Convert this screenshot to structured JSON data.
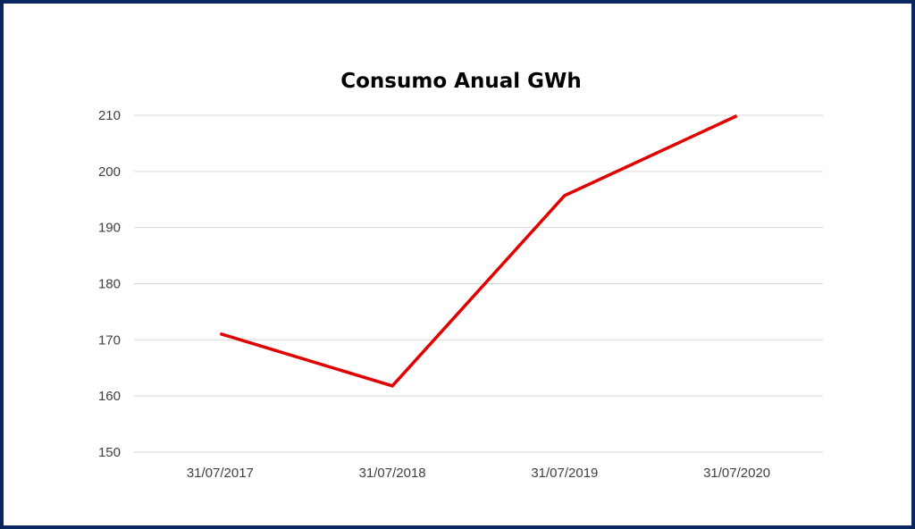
{
  "chart_data": {
    "type": "line",
    "title": "Consumo Anual GWh",
    "xlabel": "",
    "ylabel": "",
    "categories": [
      "31/07/2017",
      "31/07/2018",
      "31/07/2019",
      "31/07/2020"
    ],
    "series": [
      {
        "name": "Consumo Anual GWh",
        "values": [
          171.1,
          161.8,
          195.7,
          209.9
        ],
        "color": "#e00000"
      }
    ],
    "ylim": [
      150,
      210
    ],
    "yticks": [
      "150",
      "160",
      "170",
      "180",
      "190",
      "200",
      "210"
    ],
    "grid": true,
    "legend": "none"
  },
  "colors": {
    "border": "#0b2760",
    "grid": "#d9d9d9",
    "line": "#e00000"
  }
}
